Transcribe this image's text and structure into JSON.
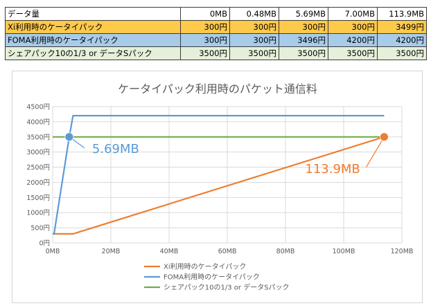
{
  "table": {
    "header": [
      "データ量",
      "0MB",
      "0.48MB",
      "5.69MB",
      "7.00MB",
      "113.9MB"
    ],
    "rows": [
      {
        "label": "Xi利用時のケータイパック",
        "cells": [
          "300円",
          "300円",
          "300円",
          "300円",
          "3499円"
        ],
        "color": "#ffc94a"
      },
      {
        "label": "FOMA利用時のケータイパック",
        "cells": [
          "300円",
          "300円",
          "3496円",
          "4200円",
          "4200円"
        ],
        "color": "#a8cbe8"
      },
      {
        "label": "シェアパック10の1/3 or データSパック",
        "cells": [
          "3500円",
          "3500円",
          "3500円",
          "3500円",
          "3500円"
        ],
        "color": "#e6efd9"
      }
    ]
  },
  "chart_data": {
    "type": "line",
    "title": "ケータイパック利用時のパケット通信料",
    "x_ticks": [
      "0MB",
      "20MB",
      "40MB",
      "60MB",
      "80MB",
      "100MB",
      "120MB"
    ],
    "y_ticks": [
      "0円",
      "500円",
      "1000円",
      "1500円",
      "2000円",
      "2500円",
      "3000円",
      "3500円",
      "4000円",
      "4500円"
    ],
    "xlim": [
      0,
      120
    ],
    "ylim": [
      0,
      4500
    ],
    "grid": true,
    "legend_position": "bottom",
    "series": [
      {
        "name": "Xi利用時のケータイパック",
        "color": "#ed7d31",
        "x": [
          0,
          0.48,
          5.69,
          7.0,
          113.9
        ],
        "y": [
          300,
          300,
          300,
          300,
          3499
        ]
      },
      {
        "name": "FOMA利用時のケータイパック",
        "color": "#5b9bd5",
        "x": [
          0,
          0.48,
          5.69,
          7.0,
          113.9
        ],
        "y": [
          300,
          300,
          3496,
          4200,
          4200
        ]
      },
      {
        "name": "シェアパック10の1/3 or データSパック",
        "color": "#70ad47",
        "x": [
          0,
          0.48,
          5.69,
          7.0,
          113.9
        ],
        "y": [
          3500,
          3500,
          3500,
          3500,
          3500
        ]
      }
    ],
    "annotations": [
      {
        "text": "5.69MB",
        "x": 5.69,
        "y": 3500,
        "color": "#5b9bd5"
      },
      {
        "text": "113.9MB",
        "x": 113.9,
        "y": 3499,
        "color": "#ed7d31"
      }
    ]
  }
}
